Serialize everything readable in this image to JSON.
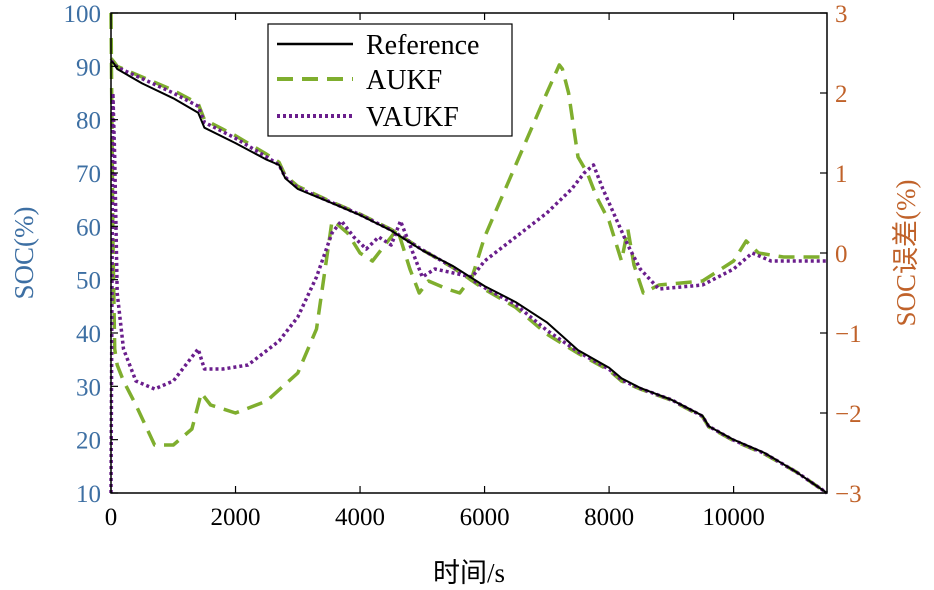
{
  "chart_data": {
    "type": "line",
    "xlabel": "时间/s",
    "ylabel_left": "SOC(%)",
    "ylabel_right": "SOC误差(%)",
    "xlim": [
      0,
      11500
    ],
    "ylim_left": [
      10,
      100
    ],
    "ylim_right": [
      -3,
      3
    ],
    "x_ticks": [
      0,
      2000,
      4000,
      6000,
      8000,
      10000
    ],
    "x_tick_labels": [
      "0",
      "2000",
      "4000",
      "6000",
      "8000",
      "10000"
    ],
    "y_left_ticks": [
      10,
      20,
      30,
      40,
      50,
      60,
      70,
      80,
      90,
      100
    ],
    "y_left_tick_labels": [
      "10",
      "20",
      "30",
      "40",
      "50",
      "60",
      "70",
      "80",
      "90",
      "100"
    ],
    "y_right_ticks": [
      -3,
      -2,
      -1,
      0,
      1,
      2,
      3
    ],
    "y_right_tick_labels": [
      "−3",
      "−2",
      "−1",
      "0",
      "1",
      "2",
      "3"
    ],
    "grid": false,
    "legend_position": "top-center",
    "legend": [
      "Reference",
      "AUKF",
      "VAUKF"
    ],
    "colors": {
      "reference": "#000000",
      "aukf": "#7fae2e",
      "vaukf": "#6a1e8c",
      "left_axis": "#3d6fa3",
      "right_axis": "#c0622a"
    },
    "series": [
      {
        "name": "Reference",
        "axis": "left",
        "style": "solid",
        "x": [
          0,
          50,
          100,
          500,
          1000,
          1400,
          1500,
          2000,
          2500,
          2700,
          2800,
          3000,
          3500,
          4000,
          4500,
          5000,
          5500,
          6000,
          6500,
          7000,
          7500,
          8000,
          8200,
          8500,
          9000,
          9500,
          9600,
          10000,
          10500,
          11000,
          11500
        ],
        "y": [
          91,
          90.5,
          89.5,
          86.8,
          84,
          81.3,
          78.5,
          75.6,
          72.5,
          71.5,
          69,
          67,
          64.6,
          62.1,
          59.2,
          55.5,
          52.5,
          48.8,
          45.8,
          42,
          36.8,
          33.5,
          31.5,
          29.7,
          27.5,
          24.5,
          22.5,
          20,
          17.5,
          14,
          10
        ]
      },
      {
        "name": "AUKF",
        "axis": "left",
        "style": "dashed",
        "x": [
          0,
          50,
          100,
          500,
          1000,
          1400,
          1500,
          2000,
          2500,
          2700,
          2800,
          3000,
          3500,
          4000,
          4500,
          5000,
          5500,
          6000,
          6500,
          7000,
          7500,
          8000,
          8200,
          8500,
          9000,
          9500,
          9600,
          10000,
          10500,
          11000,
          11500
        ],
        "y": [
          91.5,
          90.8,
          90,
          88,
          85.5,
          83,
          80,
          77,
          73.5,
          72,
          69.5,
          67.5,
          64.8,
          62.3,
          59.4,
          55.6,
          52.2,
          48.2,
          44.8,
          39.8,
          36.2,
          33,
          31,
          29.5,
          27.4,
          24.3,
          22.4,
          19.8,
          17.3,
          14,
          10
        ]
      },
      {
        "name": "VAUKF",
        "axis": "left",
        "style": "dotted",
        "x": [
          0,
          50,
          100,
          500,
          1000,
          1400,
          1500,
          2000,
          2500,
          2700,
          2800,
          3000,
          3500,
          4000,
          4500,
          5000,
          5500,
          6000,
          6500,
          7000,
          7500,
          8000,
          8200,
          8500,
          9000,
          9500,
          9600,
          10000,
          10500,
          11000,
          11500
        ],
        "y": [
          91,
          90.5,
          89.8,
          87.7,
          85,
          82.5,
          79.5,
          76.5,
          73,
          71.5,
          69.2,
          67.2,
          64.7,
          62.2,
          59.3,
          55.6,
          52.3,
          48.5,
          45.3,
          40.5,
          36.5,
          33.2,
          31.2,
          29.6,
          27.5,
          24.4,
          22.5,
          19.9,
          17.4,
          14,
          10
        ]
      },
      {
        "name": "AUKF error",
        "axis": "right",
        "style": "dashed",
        "x": [
          0,
          30,
          60,
          100,
          200,
          400,
          700,
          1000,
          1300,
          1450,
          1600,
          2000,
          2500,
          3000,
          3300,
          3550,
          3650,
          3800,
          4000,
          4200,
          4400,
          4600,
          4800,
          4950,
          5100,
          5400,
          5600,
          5800,
          6000,
          6500,
          7000,
          7200,
          7250,
          7350,
          7500,
          7650,
          7800,
          8000,
          8200,
          8300,
          8400,
          8550,
          8800,
          9500,
          10000,
          10200,
          10400,
          10800,
          11500
        ],
        "y": [
          3,
          0.2,
          -1.2,
          -1.4,
          -1.6,
          -1.9,
          -2.4,
          -2.4,
          -2.2,
          -1.75,
          -1.9,
          -2.0,
          -1.85,
          -1.5,
          -0.95,
          0.4,
          0.35,
          0.25,
          0.0,
          -0.1,
          0.1,
          0.3,
          -0.2,
          -0.5,
          -0.35,
          -0.45,
          -0.5,
          -0.3,
          0.2,
          1.1,
          2.0,
          2.35,
          2.3,
          2.0,
          1.2,
          1.0,
          0.7,
          0.4,
          -0.1,
          0.3,
          -0.15,
          -0.5,
          -0.4,
          -0.35,
          -0.1,
          0.15,
          0.0,
          -0.05,
          -0.05
        ]
      },
      {
        "name": "VAUKF error",
        "axis": "right",
        "style": "dotted",
        "x": [
          0,
          30,
          60,
          100,
          200,
          400,
          700,
          1000,
          1300,
          1400,
          1500,
          1800,
          2200,
          2700,
          3000,
          3300,
          3550,
          3700,
          3900,
          4100,
          4300,
          4500,
          4650,
          4800,
          5000,
          5200,
          5500,
          5800,
          6000,
          6500,
          7000,
          7400,
          7600,
          7750,
          7900,
          8100,
          8300,
          8500,
          8800,
          9500,
          10000,
          10300,
          10600,
          11500
        ],
        "y": [
          -3,
          2.0,
          1.2,
          -0.5,
          -1.2,
          -1.6,
          -1.7,
          -1.6,
          -1.3,
          -1.2,
          -1.45,
          -1.45,
          -1.4,
          -1.1,
          -0.8,
          -0.3,
          0.25,
          0.4,
          0.2,
          0.05,
          0.2,
          0.1,
          0.4,
          0.1,
          -0.3,
          -0.2,
          -0.25,
          -0.3,
          -0.1,
          0.2,
          0.5,
          0.8,
          1.0,
          1.1,
          0.8,
          0.45,
          0.1,
          -0.2,
          -0.45,
          -0.4,
          -0.2,
          0.0,
          -0.1,
          -0.1
        ]
      }
    ]
  }
}
